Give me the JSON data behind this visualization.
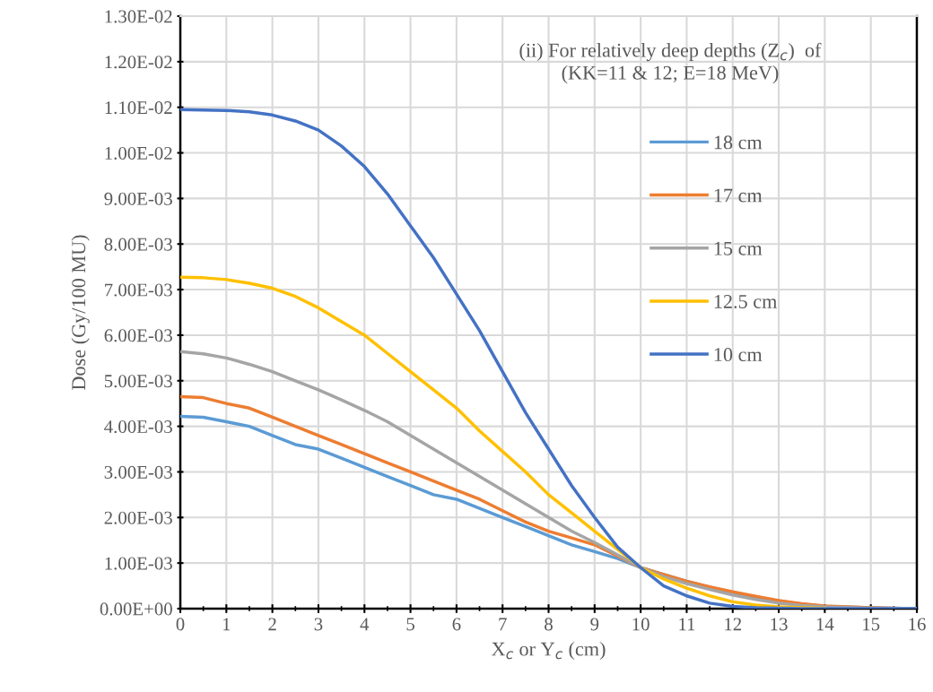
{
  "chart_data": {
    "type": "line",
    "title": "(ii) For relatively deep depths (Z$_{c}$)  of\n(KK=11 & 12; E=18 MeV)",
    "xlabel": "X$_{c}$ or Y$_{c}$ (cm)",
    "ylabel": "Dose (Gy/100 MU)",
    "x": [
      0,
      0.5,
      1,
      1.5,
      2,
      2.5,
      3,
      3.5,
      4,
      4.5,
      5,
      5.5,
      6,
      6.5,
      7,
      7.5,
      8,
      8.5,
      9,
      9.5,
      10,
      10.5,
      11,
      11.5,
      12,
      12.5,
      13,
      13.5,
      14,
      15,
      16
    ],
    "series": [
      {
        "name": "18 cm",
        "color": "#5b9bd5",
        "values": [
          0.00422,
          0.0042,
          0.0041,
          0.004,
          0.0038,
          0.0036,
          0.0035,
          0.0033,
          0.0031,
          0.0029,
          0.0027,
          0.0025,
          0.0024,
          0.0022,
          0.002,
          0.0018,
          0.0016,
          0.0014,
          0.00125,
          0.0011,
          0.0009,
          0.00075,
          0.0006,
          0.00047,
          0.00035,
          0.00025,
          0.00017,
          0.0001,
          5e-05,
          2e-05,
          0
        ]
      },
      {
        "name": "17 cm",
        "color": "#ed7d31",
        "values": [
          0.00465,
          0.00463,
          0.0045,
          0.0044,
          0.0042,
          0.004,
          0.0038,
          0.0036,
          0.0034,
          0.0032,
          0.003,
          0.0028,
          0.0026,
          0.0024,
          0.00215,
          0.0019,
          0.0017,
          0.00155,
          0.0014,
          0.00115,
          0.0009,
          0.00075,
          0.0006,
          0.00048,
          0.00037,
          0.00027,
          0.00018,
          0.00011,
          6e-05,
          2e-05,
          0
        ]
      },
      {
        "name": "15 cm",
        "color": "#a5a5a5",
        "values": [
          0.00564,
          0.00559,
          0.0055,
          0.00536,
          0.0052,
          0.005,
          0.0048,
          0.00458,
          0.00435,
          0.0041,
          0.0038,
          0.0035,
          0.0032,
          0.0029,
          0.0026,
          0.0023,
          0.002,
          0.0017,
          0.00145,
          0.00118,
          0.0009,
          0.0007,
          0.00055,
          0.00042,
          0.0003,
          0.0002,
          0.00012,
          7e-05,
          4e-05,
          1e-05,
          0
        ]
      },
      {
        "name": "12.5 cm",
        "color": "#ffc000",
        "values": [
          0.00727,
          0.00726,
          0.00722,
          0.00714,
          0.00703,
          0.00685,
          0.0066,
          0.0063,
          0.006,
          0.0056,
          0.0052,
          0.0048,
          0.0044,
          0.0039,
          0.00345,
          0.003,
          0.0025,
          0.0021,
          0.0017,
          0.0013,
          0.0009,
          0.00065,
          0.00045,
          0.00028,
          0.00015,
          8e-05,
          4e-05,
          2e-05,
          1e-05,
          null,
          null
        ]
      },
      {
        "name": "10 cm",
        "color": "#4472c4",
        "values": [
          0.01095,
          0.01094,
          0.01093,
          0.0109,
          0.01083,
          0.0107,
          0.0105,
          0.01015,
          0.0097,
          0.0091,
          0.0084,
          0.0077,
          0.0069,
          0.0061,
          0.0052,
          0.0043,
          0.0035,
          0.0027,
          0.002,
          0.00135,
          0.0009,
          0.0005,
          0.00028,
          0.00012,
          5e-05,
          2e-05,
          1e-05,
          0,
          0,
          0,
          0
        ]
      }
    ],
    "xlim": [
      0,
      16
    ],
    "xticks": [
      0,
      1,
      2,
      3,
      4,
      5,
      6,
      7,
      8,
      9,
      10,
      11,
      12,
      13,
      14,
      15,
      16
    ],
    "ylim": [
      0,
      0.013
    ],
    "yticks": [
      {
        "value": 0,
        "label": "0.00E+00"
      },
      {
        "value": 0.001,
        "label": "1.00E-03"
      },
      {
        "value": 0.002,
        "label": "2.00E-03"
      },
      {
        "value": 0.003,
        "label": "3.00E-03"
      },
      {
        "value": 0.004,
        "label": "4.00E-03"
      },
      {
        "value": 0.005,
        "label": "5.00E-03"
      },
      {
        "value": 0.006,
        "label": "6.00E-03"
      },
      {
        "value": 0.007,
        "label": "7.00E-03"
      },
      {
        "value": 0.008,
        "label": "8.00E-03"
      },
      {
        "value": 0.009,
        "label": "9.00E-03"
      },
      {
        "value": 0.01,
        "label": "1.00E-02"
      },
      {
        "value": 0.011,
        "label": "1.10E-02"
      },
      {
        "value": 0.012,
        "label": "1.20E-02"
      },
      {
        "value": 0.013,
        "label": "1.30E-02"
      }
    ],
    "grid": true,
    "legend": "right",
    "marker": "none",
    "line_style": "solid"
  }
}
